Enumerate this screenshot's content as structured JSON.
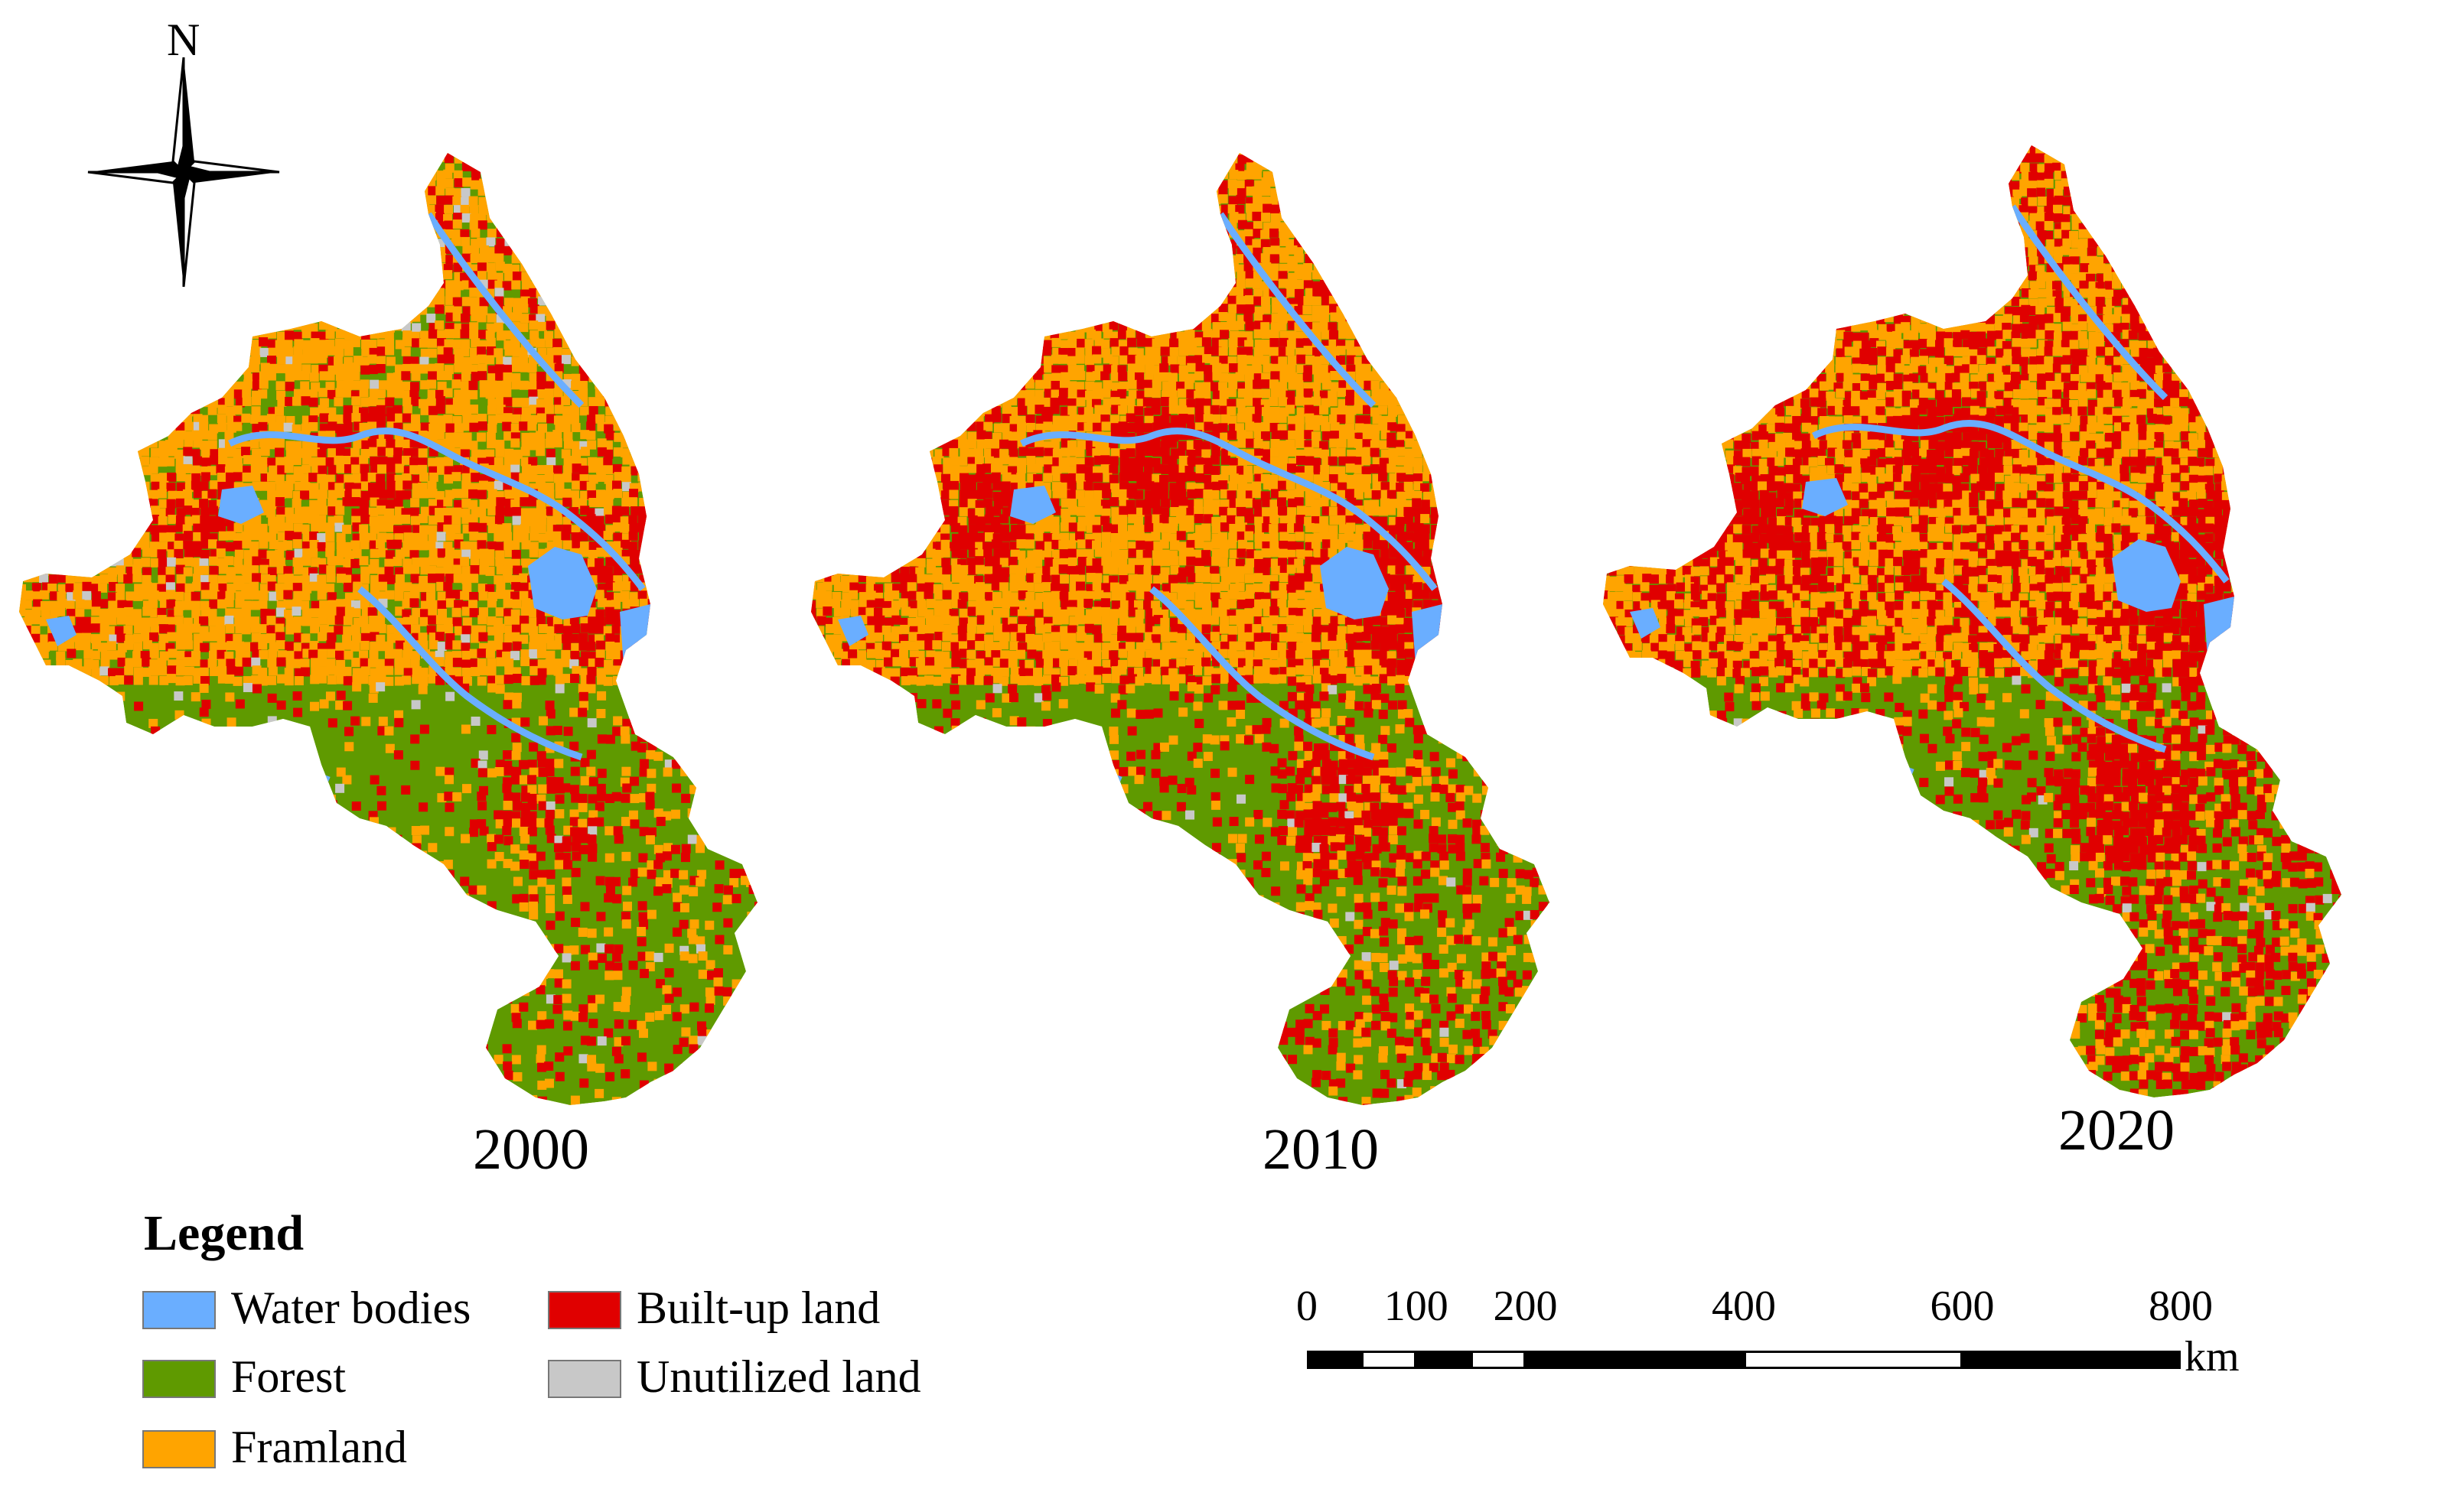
{
  "maps": [
    {
      "year": "2000",
      "built_up_level": 0.18
    },
    {
      "year": "2010",
      "built_up_level": 0.3
    },
    {
      "year": "2020",
      "built_up_level": 0.45
    }
  ],
  "compass": {
    "north_label": "N",
    "icon": "north-arrow-icon"
  },
  "legend": {
    "title": "Legend",
    "items": [
      {
        "label": "Water bodies",
        "color": "#6aaeff"
      },
      {
        "label": "Forest",
        "color": "#5f9a00"
      },
      {
        "label": "Framland",
        "color": "#ffa400"
      },
      {
        "label": "Built-up land",
        "color": "#e00000"
      },
      {
        "label": "Unutilized land",
        "color": "#c8c8c8"
      }
    ]
  },
  "scale_bar": {
    "ticks": [
      "0",
      "100",
      "200",
      "400",
      "600",
      "800"
    ],
    "tick_values": [
      0,
      100,
      200,
      400,
      600,
      800
    ],
    "unit": "km"
  },
  "colors": {
    "water": "#6aaeff",
    "forest": "#5f9a00",
    "farmland": "#ffa400",
    "built": "#e00000",
    "unutilized": "#c8c8c8"
  }
}
